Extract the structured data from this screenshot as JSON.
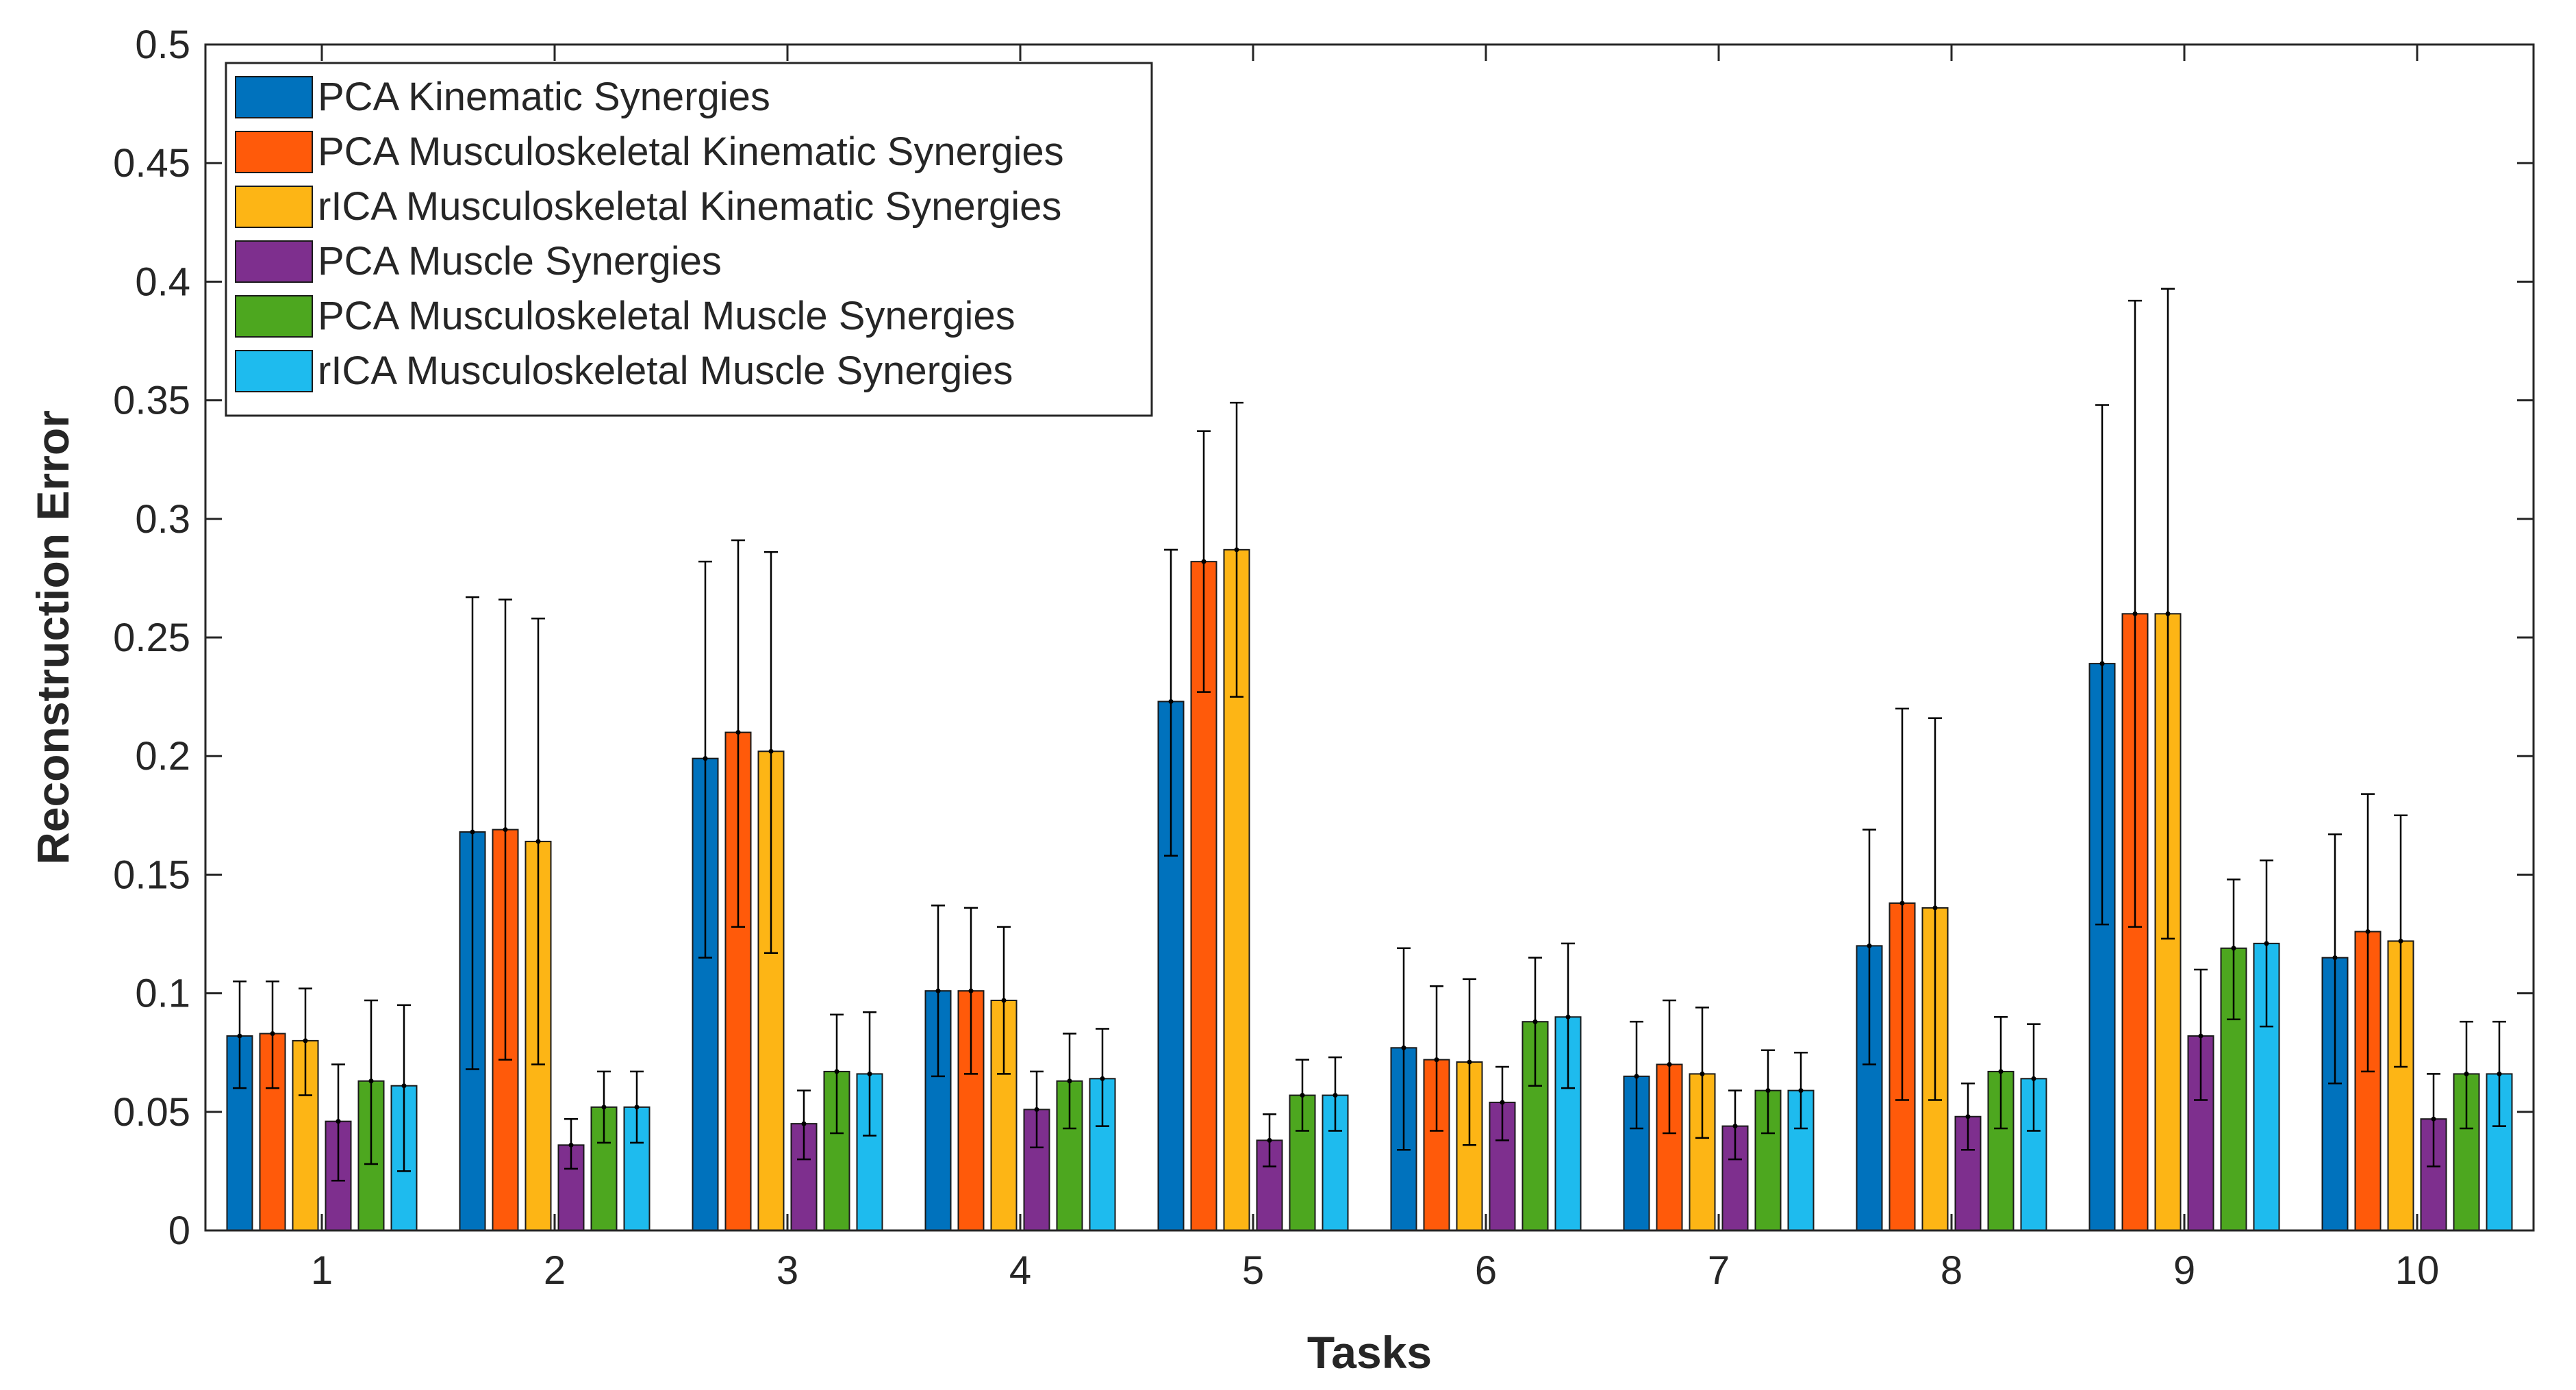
{
  "chart_data": {
    "type": "bar",
    "title": "",
    "xlabel": "Tasks",
    "ylabel": "Reconstruction Error",
    "ylim": [
      0,
      0.5
    ],
    "yticks": [
      0,
      0.05,
      0.1,
      0.15,
      0.2,
      0.25,
      0.3,
      0.35,
      0.4,
      0.45,
      0.5
    ],
    "ytick_labels": [
      "0",
      "0.05",
      "0.1",
      "0.15",
      "0.2",
      "0.25",
      "0.3",
      "0.35",
      "0.4",
      "0.45",
      "0.5"
    ],
    "categories": [
      "1",
      "2",
      "3",
      "4",
      "5",
      "6",
      "7",
      "8",
      "9",
      "10"
    ],
    "legend_position": "top-left",
    "grid": false,
    "series": [
      {
        "name": "PCA Kinematic Synergies",
        "color": "#0072BD",
        "values": [
          0.082,
          0.168,
          0.199,
          0.101,
          0.223,
          0.077,
          0.065,
          0.12,
          0.239,
          0.115
        ],
        "error_low": [
          0.06,
          0.068,
          0.115,
          0.065,
          0.158,
          0.034,
          0.043,
          0.07,
          0.129,
          0.062
        ],
        "error_high": [
          0.105,
          0.267,
          0.282,
          0.137,
          0.287,
          0.119,
          0.088,
          0.169,
          0.348,
          0.167
        ]
      },
      {
        "name": "PCA Musculoskeletal Kinematic Synergies",
        "color": "#FF5A0A",
        "values": [
          0.083,
          0.169,
          0.21,
          0.101,
          0.282,
          0.072,
          0.07,
          0.138,
          0.26,
          0.126
        ],
        "error_low": [
          0.06,
          0.072,
          0.128,
          0.066,
          0.227,
          0.042,
          0.041,
          0.055,
          0.128,
          0.067
        ],
        "error_high": [
          0.105,
          0.266,
          0.291,
          0.136,
          0.337,
          0.103,
          0.097,
          0.22,
          0.392,
          0.184
        ]
      },
      {
        "name": "rICA Musculoskeletal Kinematic Synergies",
        "color": "#FDB515",
        "values": [
          0.08,
          0.164,
          0.202,
          0.097,
          0.287,
          0.071,
          0.066,
          0.136,
          0.26,
          0.122
        ],
        "error_low": [
          0.057,
          0.07,
          0.117,
          0.066,
          0.225,
          0.036,
          0.039,
          0.055,
          0.123,
          0.069
        ],
        "error_high": [
          0.102,
          0.258,
          0.286,
          0.128,
          0.349,
          0.106,
          0.094,
          0.216,
          0.397,
          0.175
        ]
      },
      {
        "name": "PCA Muscle Synergies",
        "color": "#7E2F8E",
        "values": [
          0.046,
          0.036,
          0.045,
          0.051,
          0.038,
          0.054,
          0.044,
          0.048,
          0.082,
          0.047
        ],
        "error_low": [
          0.021,
          0.026,
          0.03,
          0.035,
          0.027,
          0.038,
          0.03,
          0.034,
          0.055,
          0.027
        ],
        "error_high": [
          0.07,
          0.047,
          0.059,
          0.067,
          0.049,
          0.069,
          0.059,
          0.062,
          0.11,
          0.066
        ]
      },
      {
        "name": "PCA Musculoskeletal Muscle Synergies",
        "color": "#4DA71F",
        "values": [
          0.063,
          0.052,
          0.067,
          0.063,
          0.057,
          0.088,
          0.059,
          0.067,
          0.119,
          0.066
        ],
        "error_low": [
          0.028,
          0.037,
          0.041,
          0.043,
          0.042,
          0.061,
          0.041,
          0.043,
          0.089,
          0.043
        ],
        "error_high": [
          0.097,
          0.067,
          0.091,
          0.083,
          0.072,
          0.115,
          0.076,
          0.09,
          0.148,
          0.088
        ]
      },
      {
        "name": "rICA Musculoskeletal Muscle Synergies",
        "color": "#1EBBEE",
        "values": [
          0.061,
          0.052,
          0.066,
          0.064,
          0.057,
          0.09,
          0.059,
          0.064,
          0.121,
          0.066
        ],
        "error_low": [
          0.025,
          0.037,
          0.04,
          0.044,
          0.042,
          0.06,
          0.043,
          0.042,
          0.086,
          0.044
        ],
        "error_high": [
          0.095,
          0.067,
          0.092,
          0.085,
          0.073,
          0.121,
          0.075,
          0.087,
          0.156,
          0.088
        ]
      }
    ]
  }
}
